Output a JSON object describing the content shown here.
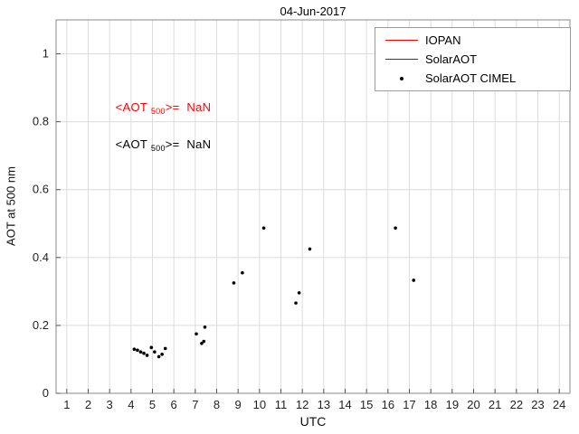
{
  "chart_data": {
    "type": "scatter",
    "title": "04-Jun-2017",
    "xlabel": "UTC",
    "ylabel": "AOT at 500 nm",
    "xlim": [
      0.5,
      24.5
    ],
    "ylim": [
      0,
      1.1
    ],
    "xticks": [
      1,
      2,
      3,
      4,
      5,
      6,
      7,
      8,
      9,
      10,
      11,
      12,
      13,
      14,
      15,
      16,
      17,
      18,
      19,
      20,
      21,
      22,
      23,
      24
    ],
    "yticks": [
      0,
      0.2,
      0.4,
      0.6,
      0.8,
      1
    ],
    "ytick_labels": [
      "0",
      "0.2",
      "0.4",
      "0.6",
      "0.8",
      "1"
    ],
    "grid": true,
    "colors": {
      "grid": "#dcdcdc",
      "axis": "#8a8a8a",
      "tick": "#555555",
      "tick_label": "#222222"
    },
    "legend": {
      "position": "top-right",
      "entries": [
        {
          "label": "IOPAN",
          "type": "line",
          "color": "#ff0000"
        },
        {
          "label": "SolarAOT",
          "type": "line",
          "color": "#3a3a3a"
        },
        {
          "label": "SolarAOT CIMEL",
          "type": "dot",
          "color": "#000000"
        }
      ]
    },
    "annotations": [
      {
        "prefix": "<AOT ",
        "sub": "500",
        "suffix": ">=  NaN",
        "color": "#ff0000"
      },
      {
        "prefix": "<AOT ",
        "sub": "500",
        "suffix": ">=  NaN",
        "color": "#000000"
      }
    ],
    "series": [
      {
        "name": "SolarAOT CIMEL",
        "marker": "dot",
        "color": "#000000",
        "points": [
          [
            4.15,
            0.13
          ],
          [
            4.3,
            0.127
          ],
          [
            4.45,
            0.122
          ],
          [
            4.6,
            0.118
          ],
          [
            4.75,
            0.112
          ],
          [
            4.95,
            0.135
          ],
          [
            5.1,
            0.122
          ],
          [
            5.3,
            0.108
          ],
          [
            5.45,
            0.115
          ],
          [
            5.6,
            0.132
          ],
          [
            7.05,
            0.175
          ],
          [
            7.3,
            0.147
          ],
          [
            7.4,
            0.153
          ],
          [
            7.45,
            0.195
          ],
          [
            8.8,
            0.325
          ],
          [
            9.2,
            0.355
          ],
          [
            10.2,
            0.487
          ],
          [
            11.7,
            0.266
          ],
          [
            11.85,
            0.296
          ],
          [
            12.35,
            0.425
          ],
          [
            16.35,
            0.487
          ],
          [
            17.2,
            0.333
          ]
        ]
      }
    ]
  }
}
